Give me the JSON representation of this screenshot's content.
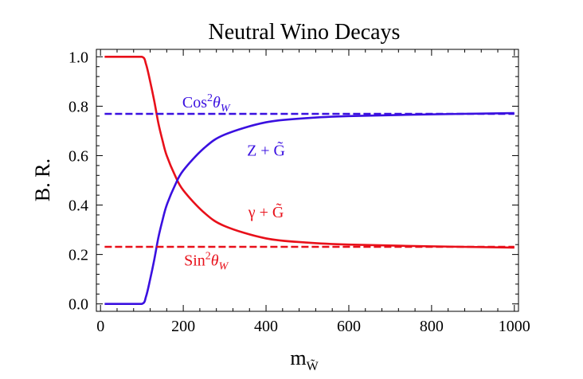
{
  "chart_data": {
    "type": "line",
    "title": "Neutral Wino Decays",
    "xlabel": "m",
    "xlabel_sub": "W̃",
    "ylabel": "B. R.",
    "xlim": [
      -10,
      1010
    ],
    "ylim": [
      -0.03,
      1.03
    ],
    "xticks": [
      0,
      200,
      400,
      600,
      800,
      1000
    ],
    "yticks": [
      0.0,
      0.2,
      0.4,
      0.6,
      0.8,
      1.0
    ],
    "xtick_labels": [
      "0",
      "200",
      "400",
      "600",
      "800",
      "1000"
    ],
    "ytick_labels": [
      "0.0",
      "0.2",
      "0.4",
      "0.6",
      "0.8",
      "1.0"
    ],
    "grid": false,
    "series": [
      {
        "name": "γ + G̃",
        "color": "#e8101a",
        "style": "solid",
        "x": [
          10,
          60,
          100,
          110,
          120,
          130,
          140,
          150,
          160,
          180,
          200,
          250,
          300,
          400,
          500,
          600,
          800,
          1000
        ],
        "y": [
          1.0,
          1.0,
          1.0,
          0.97,
          0.9,
          0.82,
          0.73,
          0.66,
          0.6,
          0.52,
          0.46,
          0.37,
          0.315,
          0.265,
          0.248,
          0.24,
          0.233,
          0.228
        ]
      },
      {
        "name": "Z + G̃",
        "color": "#3a10e0",
        "style": "solid",
        "x": [
          10,
          60,
          100,
          110,
          120,
          130,
          140,
          150,
          160,
          180,
          200,
          250,
          300,
          400,
          500,
          600,
          800,
          1000
        ],
        "y": [
          0.0,
          0.0,
          0.0,
          0.03,
          0.1,
          0.18,
          0.27,
          0.34,
          0.4,
          0.48,
          0.54,
          0.63,
          0.685,
          0.735,
          0.752,
          0.76,
          0.767,
          0.772
        ]
      },
      {
        "name": "Cos²θ_W",
        "color": "#3a10e0",
        "style": "dashed",
        "x": [
          10,
          1000
        ],
        "y": [
          0.769,
          0.769
        ]
      },
      {
        "name": "Sin²θ_W",
        "color": "#e8101a",
        "style": "dashed",
        "x": [
          10,
          1000
        ],
        "y": [
          0.231,
          0.231
        ]
      }
    ],
    "annotations": [
      {
        "id": "cos",
        "base": "Cos",
        "sup": "2",
        "theta": "θ",
        "sub": "W",
        "color": "#3a10e0",
        "x": 255,
        "y": 0.795
      },
      {
        "id": "sin",
        "base": "Sin",
        "sup": "2",
        "theta": "θ",
        "sub": "W",
        "color": "#e8101a",
        "x": 255,
        "y": 0.155
      },
      {
        "id": "zg",
        "text": "Z + G̃",
        "color": "#3a10e0",
        "x": 400,
        "y": 0.6
      },
      {
        "id": "gg",
        "text": "γ + G̃",
        "color": "#e8101a",
        "x": 400,
        "y": 0.35
      }
    ]
  }
}
